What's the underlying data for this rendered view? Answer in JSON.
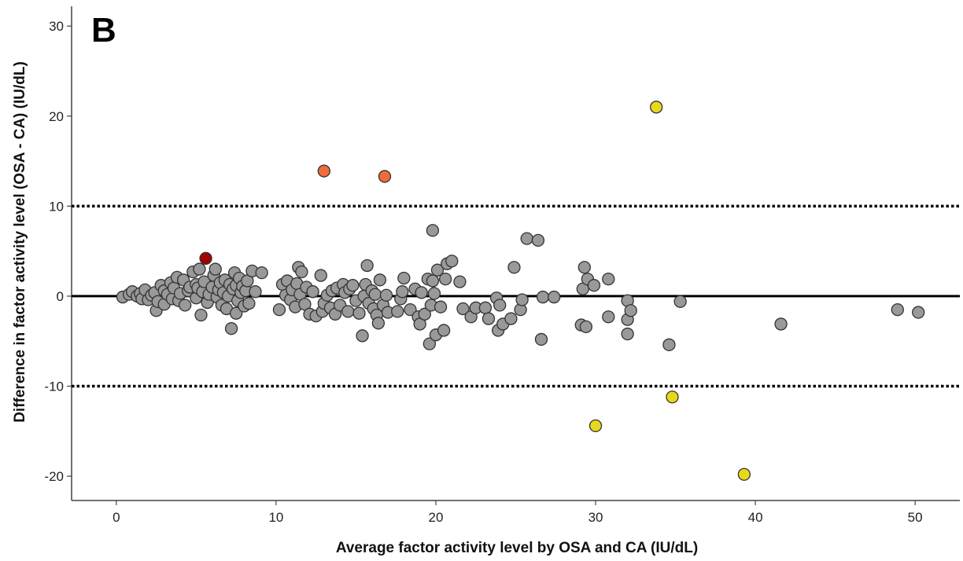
{
  "chart_data": {
    "type": "scatter",
    "panel_label": "B",
    "xlabel": "Average factor activity level by OSA and CA (IU/dL)",
    "ylabel": "Difference in factor activity level (OSA - CA) (IU/dL)",
    "xlim": [
      -2.8,
      52.8
    ],
    "ylim": [
      -22.7,
      32.2
    ],
    "x_ticks": [
      0,
      10,
      20,
      30,
      40,
      50
    ],
    "y_ticks": [
      -20,
      -10,
      0,
      10,
      20,
      30
    ],
    "grid": false,
    "reference_lines": [
      {
        "y": 0,
        "style": "solid"
      },
      {
        "y": 10,
        "style": "dotted"
      },
      {
        "y": -10,
        "style": "dotted"
      }
    ],
    "colors": {
      "default": "#999999",
      "dark_red": "#a50000",
      "orange": "#f26b3a",
      "yellow": "#e8d81c",
      "stroke": "#333333"
    },
    "highlighted_points": [
      {
        "x": 5.6,
        "y": 4.2,
        "color": "dark_red"
      },
      {
        "x": 13.0,
        "y": 13.9,
        "color": "orange"
      },
      {
        "x": 16.8,
        "y": 13.3,
        "color": "orange"
      },
      {
        "x": 33.8,
        "y": 21.0,
        "color": "yellow"
      },
      {
        "x": 30.0,
        "y": -14.4,
        "color": "yellow"
      },
      {
        "x": 34.8,
        "y": -11.2,
        "color": "yellow"
      },
      {
        "x": 39.3,
        "y": -19.8,
        "color": "yellow"
      }
    ],
    "points": [
      [
        0.4,
        -0.1
      ],
      [
        0.8,
        0.2
      ],
      [
        1.0,
        0.5
      ],
      [
        1.3,
        0.0
      ],
      [
        1.5,
        0.3
      ],
      [
        1.6,
        -0.3
      ],
      [
        1.8,
        0.7
      ],
      [
        2.0,
        -0.4
      ],
      [
        2.2,
        0.1
      ],
      [
        2.4,
        0.4
      ],
      [
        2.5,
        -1.6
      ],
      [
        2.6,
        -0.6
      ],
      [
        2.8,
        1.2
      ],
      [
        3.0,
        0.6
      ],
      [
        3.0,
        -0.9
      ],
      [
        3.2,
        0.2
      ],
      [
        3.4,
        1.5
      ],
      [
        3.5,
        -0.3
      ],
      [
        3.6,
        0.9
      ],
      [
        3.8,
        2.1
      ],
      [
        3.9,
        -0.5
      ],
      [
        4.0,
        0.3
      ],
      [
        4.2,
        1.8
      ],
      [
        4.3,
        -1.0
      ],
      [
        4.5,
        0.6
      ],
      [
        4.6,
        1.0
      ],
      [
        4.8,
        2.7
      ],
      [
        5.0,
        -0.2
      ],
      [
        5.0,
        1.3
      ],
      [
        5.1,
        0.9
      ],
      [
        5.2,
        3.0
      ],
      [
        5.3,
        -2.1
      ],
      [
        5.4,
        0.5
      ],
      [
        5.5,
        1.6
      ],
      [
        5.7,
        -0.7
      ],
      [
        5.8,
        0.2
      ],
      [
        6.0,
        1.0
      ],
      [
        6.1,
        2.3
      ],
      [
        6.2,
        3.0
      ],
      [
        6.3,
        -0.1
      ],
      [
        6.4,
        0.7
      ],
      [
        6.5,
        1.5
      ],
      [
        6.6,
        -1.0
      ],
      [
        6.7,
        0.4
      ],
      [
        6.8,
        1.8
      ],
      [
        6.9,
        -1.4
      ],
      [
        7.0,
        0.0
      ],
      [
        7.1,
        1.3
      ],
      [
        7.2,
        -3.6
      ],
      [
        7.3,
        0.8
      ],
      [
        7.4,
        2.6
      ],
      [
        7.5,
        1.2
      ],
      [
        7.5,
        -1.9
      ],
      [
        7.6,
        -0.5
      ],
      [
        7.7,
        2.0
      ],
      [
        7.8,
        0.4
      ],
      [
        7.9,
        1.1
      ],
      [
        8.0,
        -1.1
      ],
      [
        8.1,
        0.6
      ],
      [
        8.2,
        1.7
      ],
      [
        8.3,
        -0.8
      ],
      [
        8.5,
        2.8
      ],
      [
        8.7,
        0.5
      ],
      [
        9.1,
        2.6
      ],
      [
        10.2,
        -1.5
      ],
      [
        10.4,
        1.3
      ],
      [
        10.6,
        0.1
      ],
      [
        10.7,
        1.7
      ],
      [
        10.9,
        -0.4
      ],
      [
        11.0,
        0.7
      ],
      [
        11.2,
        -1.2
      ],
      [
        11.3,
        1.4
      ],
      [
        11.4,
        3.2
      ],
      [
        11.5,
        0.2
      ],
      [
        11.6,
        2.7
      ],
      [
        11.8,
        -0.9
      ],
      [
        11.9,
        1.0
      ],
      [
        12.1,
        -2.0
      ],
      [
        12.3,
        0.5
      ],
      [
        12.5,
        -2.2
      ],
      [
        12.8,
        2.3
      ],
      [
        12.9,
        -1.7
      ],
      [
        13.0,
        -0.8
      ],
      [
        13.2,
        0.1
      ],
      [
        13.4,
        -1.3
      ],
      [
        13.5,
        0.6
      ],
      [
        13.7,
        -2.0
      ],
      [
        13.8,
        0.9
      ],
      [
        14.0,
        -1.0
      ],
      [
        14.2,
        1.3
      ],
      [
        14.3,
        0.4
      ],
      [
        14.5,
        -1.7
      ],
      [
        14.6,
        0.8
      ],
      [
        14.8,
        1.2
      ],
      [
        15.0,
        -0.5
      ],
      [
        15.2,
        -1.9
      ],
      [
        15.4,
        -4.4
      ],
      [
        15.5,
        0.0
      ],
      [
        15.6,
        1.3
      ],
      [
        15.7,
        3.4
      ],
      [
        15.8,
        -0.8
      ],
      [
        16.0,
        0.6
      ],
      [
        16.1,
        -1.4
      ],
      [
        16.2,
        0.2
      ],
      [
        16.3,
        -2.1
      ],
      [
        16.4,
        -3.0
      ],
      [
        16.5,
        1.8
      ],
      [
        16.7,
        -1.0
      ],
      [
        16.9,
        0.1
      ],
      [
        17.0,
        -1.8
      ],
      [
        17.6,
        -1.7
      ],
      [
        17.8,
        -0.3
      ],
      [
        17.9,
        0.5
      ],
      [
        18.0,
        2.0
      ],
      [
        18.4,
        -1.5
      ],
      [
        18.7,
        0.8
      ],
      [
        18.9,
        -2.3
      ],
      [
        19.0,
        -3.1
      ],
      [
        19.1,
        0.4
      ],
      [
        19.3,
        -2.0
      ],
      [
        19.5,
        1.9
      ],
      [
        19.6,
        -5.3
      ],
      [
        19.7,
        -1.0
      ],
      [
        19.8,
        1.7
      ],
      [
        19.8,
        7.3
      ],
      [
        19.9,
        0.3
      ],
      [
        20.0,
        -4.3
      ],
      [
        20.1,
        2.9
      ],
      [
        20.3,
        -1.2
      ],
      [
        20.5,
        -3.8
      ],
      [
        20.6,
        1.9
      ],
      [
        20.7,
        3.6
      ],
      [
        21.0,
        3.9
      ],
      [
        21.5,
        1.6
      ],
      [
        21.7,
        -1.4
      ],
      [
        22.2,
        -2.3
      ],
      [
        22.5,
        -1.3
      ],
      [
        23.1,
        -1.3
      ],
      [
        23.3,
        -2.5
      ],
      [
        23.8,
        -0.2
      ],
      [
        23.9,
        -3.8
      ],
      [
        24.0,
        -1.0
      ],
      [
        24.2,
        -3.1
      ],
      [
        24.7,
        -2.5
      ],
      [
        24.9,
        3.2
      ],
      [
        25.3,
        -1.5
      ],
      [
        25.4,
        -0.4
      ],
      [
        25.7,
        6.4
      ],
      [
        26.4,
        6.2
      ],
      [
        26.6,
        -4.8
      ],
      [
        26.7,
        -0.1
      ],
      [
        27.4,
        -0.1
      ],
      [
        29.1,
        -3.2
      ],
      [
        29.2,
        0.8
      ],
      [
        29.3,
        3.2
      ],
      [
        29.4,
        -3.4
      ],
      [
        29.5,
        1.9
      ],
      [
        29.9,
        1.2
      ],
      [
        30.8,
        -2.3
      ],
      [
        30.8,
        1.9
      ],
      [
        32.0,
        -0.5
      ],
      [
        32.0,
        -2.6
      ],
      [
        32.0,
        -4.2
      ],
      [
        32.2,
        -1.6
      ],
      [
        34.6,
        -5.4
      ],
      [
        35.3,
        -0.6
      ],
      [
        41.6,
        -3.1
      ],
      [
        48.9,
        -1.5
      ],
      [
        50.2,
        -1.8
      ]
    ]
  }
}
